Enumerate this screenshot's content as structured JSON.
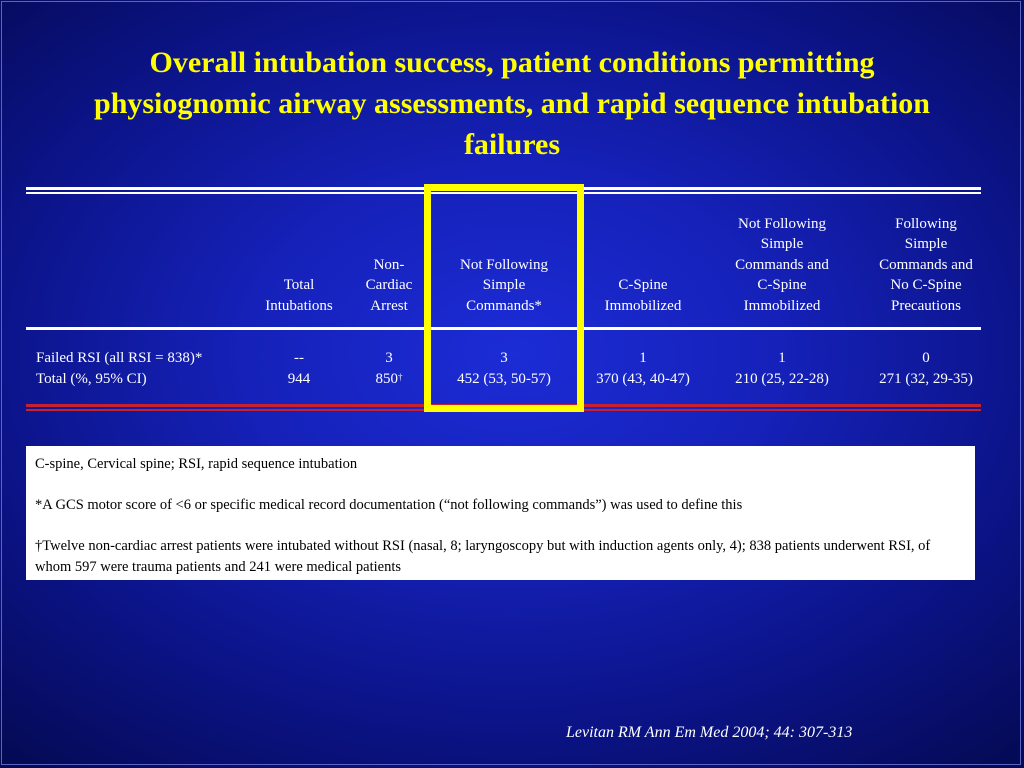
{
  "slide": {
    "title": "Overall intubation success, patient conditions permitting physiognomic airway assessments, and rapid sequence intubation failures"
  },
  "table": {
    "columns": [
      {
        "lines": [
          "Total",
          "Intubations"
        ]
      },
      {
        "lines": [
          "Non-",
          "Cardiac",
          "Arrest"
        ]
      },
      {
        "lines": [
          "Not Following",
          "Simple",
          "Commands*"
        ]
      },
      {
        "lines": [
          "C-Spine",
          "Immobilized"
        ]
      },
      {
        "lines": [
          "Not Following",
          "Simple",
          "Commands and",
          "C-Spine",
          "Immobilized"
        ]
      },
      {
        "lines": [
          "Following",
          "Simple",
          "Commands and",
          "No C-Spine",
          "Precautions"
        ]
      }
    ],
    "rows": [
      {
        "label": "Failed RSI (all RSI = 838)*",
        "values": [
          "--",
          "3",
          "3",
          "1",
          "1",
          "0"
        ]
      },
      {
        "label": "Total (%, 95% CI)",
        "values": [
          "944",
          "850",
          "452 (53, 50-57)",
          "370 (43, 40-47)",
          "210 (25, 22-28)",
          "271 (32, 29-35)"
        ],
        "footnote_mark": "†"
      }
    ]
  },
  "notes": {
    "abbreviations": "C-spine, Cervical spine; RSI, rapid sequence intubation",
    "gcs_note": "*A GCS motor score of <6 or specific medical record documentation (“not following commands”) was used to define this",
    "dagger_note": "†Twelve non-cardiac arrest patients were intubated without RSI (nasal, 8; laryngoscopy but with induction agents only, 4); 838 patients underwent RSI, of whom 597 were trauma patients and 241 were medical patients"
  },
  "citation": "Levitan RM Ann Em Med 2004; 44: 307-313",
  "colors": {
    "background": "#1521b8",
    "title": "#ffff00",
    "highlight": "#ffff00",
    "bottom_rule": "#c8202c"
  }
}
